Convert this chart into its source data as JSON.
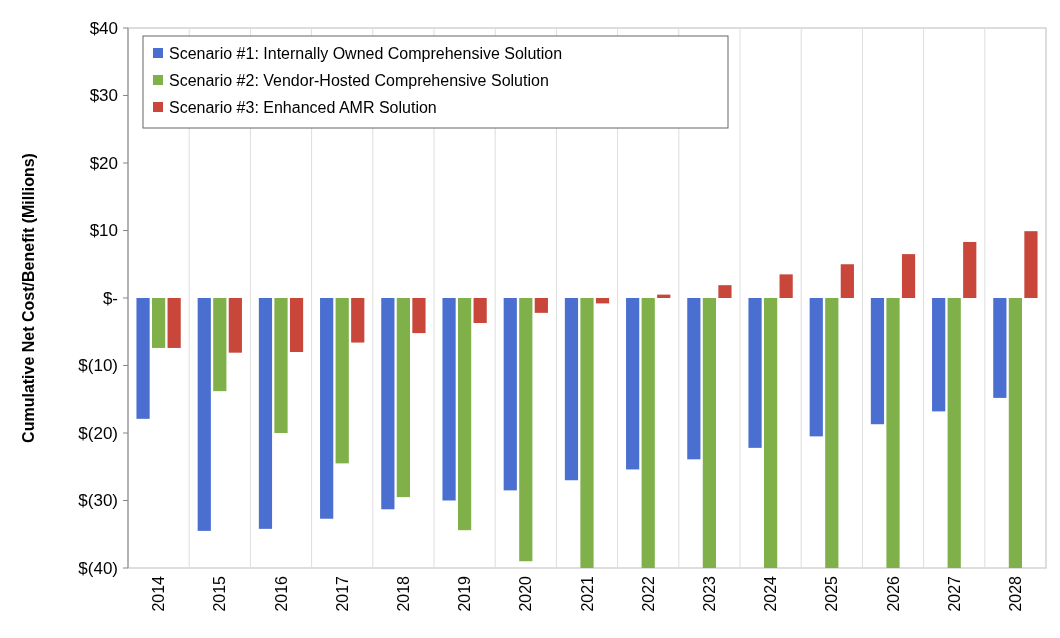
{
  "chart_data": {
    "type": "bar",
    "ylabel": "Cumulative Net Cost/Benefit (Millions)",
    "categories": [
      "2014",
      "2015",
      "2016",
      "2017",
      "2018",
      "2019",
      "2020",
      "2021",
      "2022",
      "2023",
      "2024",
      "2025",
      "2026",
      "2027",
      "2028"
    ],
    "series": [
      {
        "name": "Scenario #1: Internally Owned Comprehensive Solution",
        "color": "#4a6fd0",
        "values": [
          -17.9,
          -34.5,
          -34.2,
          -32.7,
          -31.3,
          -30,
          -28.5,
          -27,
          -25.4,
          -23.9,
          -22.2,
          -20.5,
          -18.7,
          -16.8,
          -14.8
        ]
      },
      {
        "name": "Scenario #2: Vendor-Hosted Comprehensive Solution",
        "color": "#7fb04a",
        "values": [
          -7.4,
          -13.8,
          -20,
          -24.5,
          -29.5,
          -34.4,
          -39,
          -40,
          -40,
          -40,
          -40,
          -40,
          -40,
          -40,
          -40
        ]
      },
      {
        "name": "Scenario #3: Enhanced AMR Solution",
        "color": "#c8473a",
        "values": [
          -7.4,
          -8.1,
          -8,
          -6.6,
          -5.2,
          -3.7,
          -2.2,
          -0.8,
          0.5,
          1.9,
          3.5,
          5,
          6.5,
          8.3,
          9.9
        ]
      }
    ],
    "ylim": [
      -40,
      40
    ],
    "yticks": [
      {
        "value": -40,
        "label": "$(40)"
      },
      {
        "value": -30,
        "label": "$(30)"
      },
      {
        "value": -20,
        "label": "$(20)"
      },
      {
        "value": -10,
        "label": "$(10)"
      },
      {
        "value": 0,
        "label": "$-"
      },
      {
        "value": 10,
        "label": "$10"
      },
      {
        "value": 20,
        "label": "$20"
      },
      {
        "value": 30,
        "label": "$30"
      },
      {
        "value": 40,
        "label": "$40"
      }
    ],
    "grid": "x",
    "legend": "top left"
  }
}
